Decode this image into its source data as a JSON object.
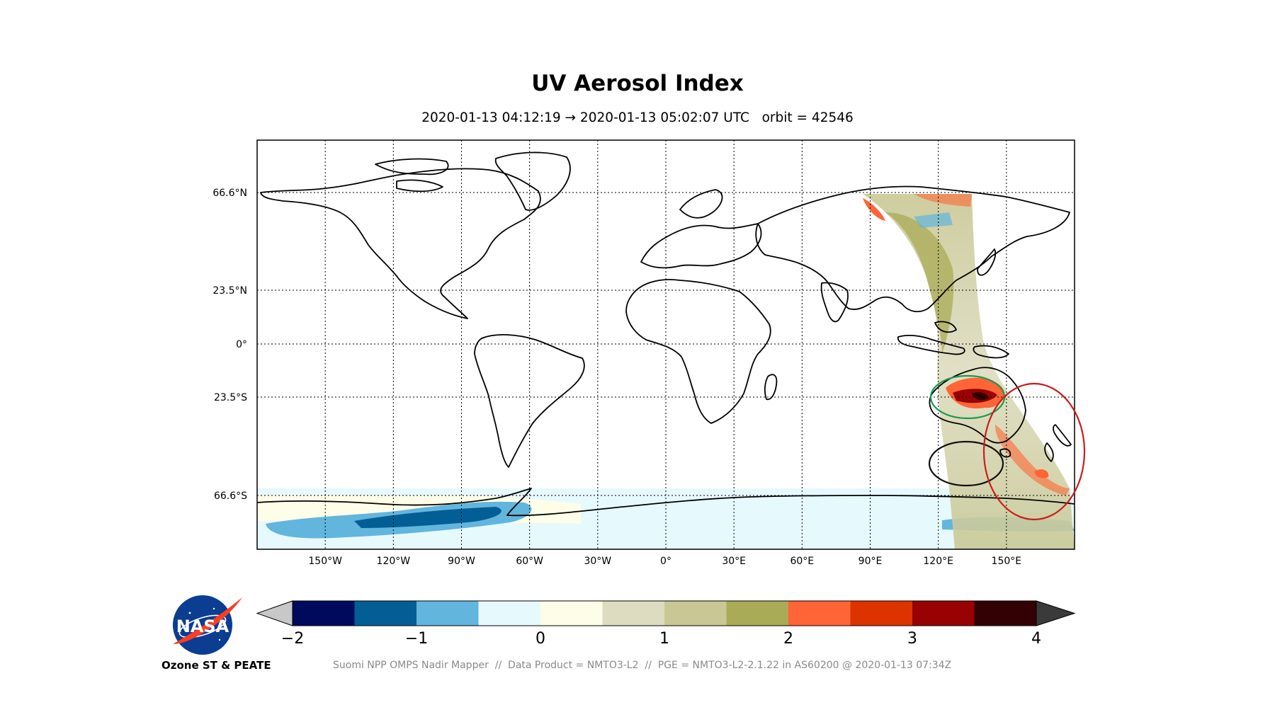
{
  "title": "UV Aerosol Index",
  "subtitle": "2020-01-13 04:12:19 → 2020-01-13 05:02:07 UTC   orbit = 42546",
  "latitude_labels": [
    "66.6°N",
    "23.5°N",
    "0°",
    "23.5°S",
    "66.6°S"
  ],
  "longitude_labels": [
    "150°W",
    "120°W",
    "90°W",
    "60°W",
    "30°W",
    "0°",
    "30°E",
    "60°E",
    "90°E",
    "120°E",
    "150°E"
  ],
  "colorbar": {
    "tick_labels": [
      "−2",
      "−1",
      "0",
      "1",
      "2",
      "3",
      "4"
    ],
    "under_color": "#c8c8c8",
    "over_color": "#3a3a3a",
    "colors": [
      "#000a5c",
      "#035e95",
      "#62b5dd",
      "#e6f9fd",
      "#fefee8",
      "#dddcc0",
      "#c9c895",
      "#aaab56",
      "#ff6536",
      "#dd3300",
      "#990202",
      "#330003"
    ]
  },
  "annotations": [
    {
      "shape": "ellipse",
      "color": "#1a9a4f",
      "meaning": "circled region"
    },
    {
      "shape": "ellipse",
      "color": "#111111",
      "meaning": "circled region"
    },
    {
      "shape": "ellipse",
      "color": "#cc1c1c",
      "meaning": "circled region"
    }
  ],
  "logo": {
    "text": "NASA",
    "caption": "Ozone ST & PEATE"
  },
  "footer": "Suomi NPP OMPS Nadir Mapper  //  Data Product = NMTO3-L2  //  PGE = NMTO3-L2-2.1.22 in AS60200 @ 2020-01-13 07:34Z"
}
